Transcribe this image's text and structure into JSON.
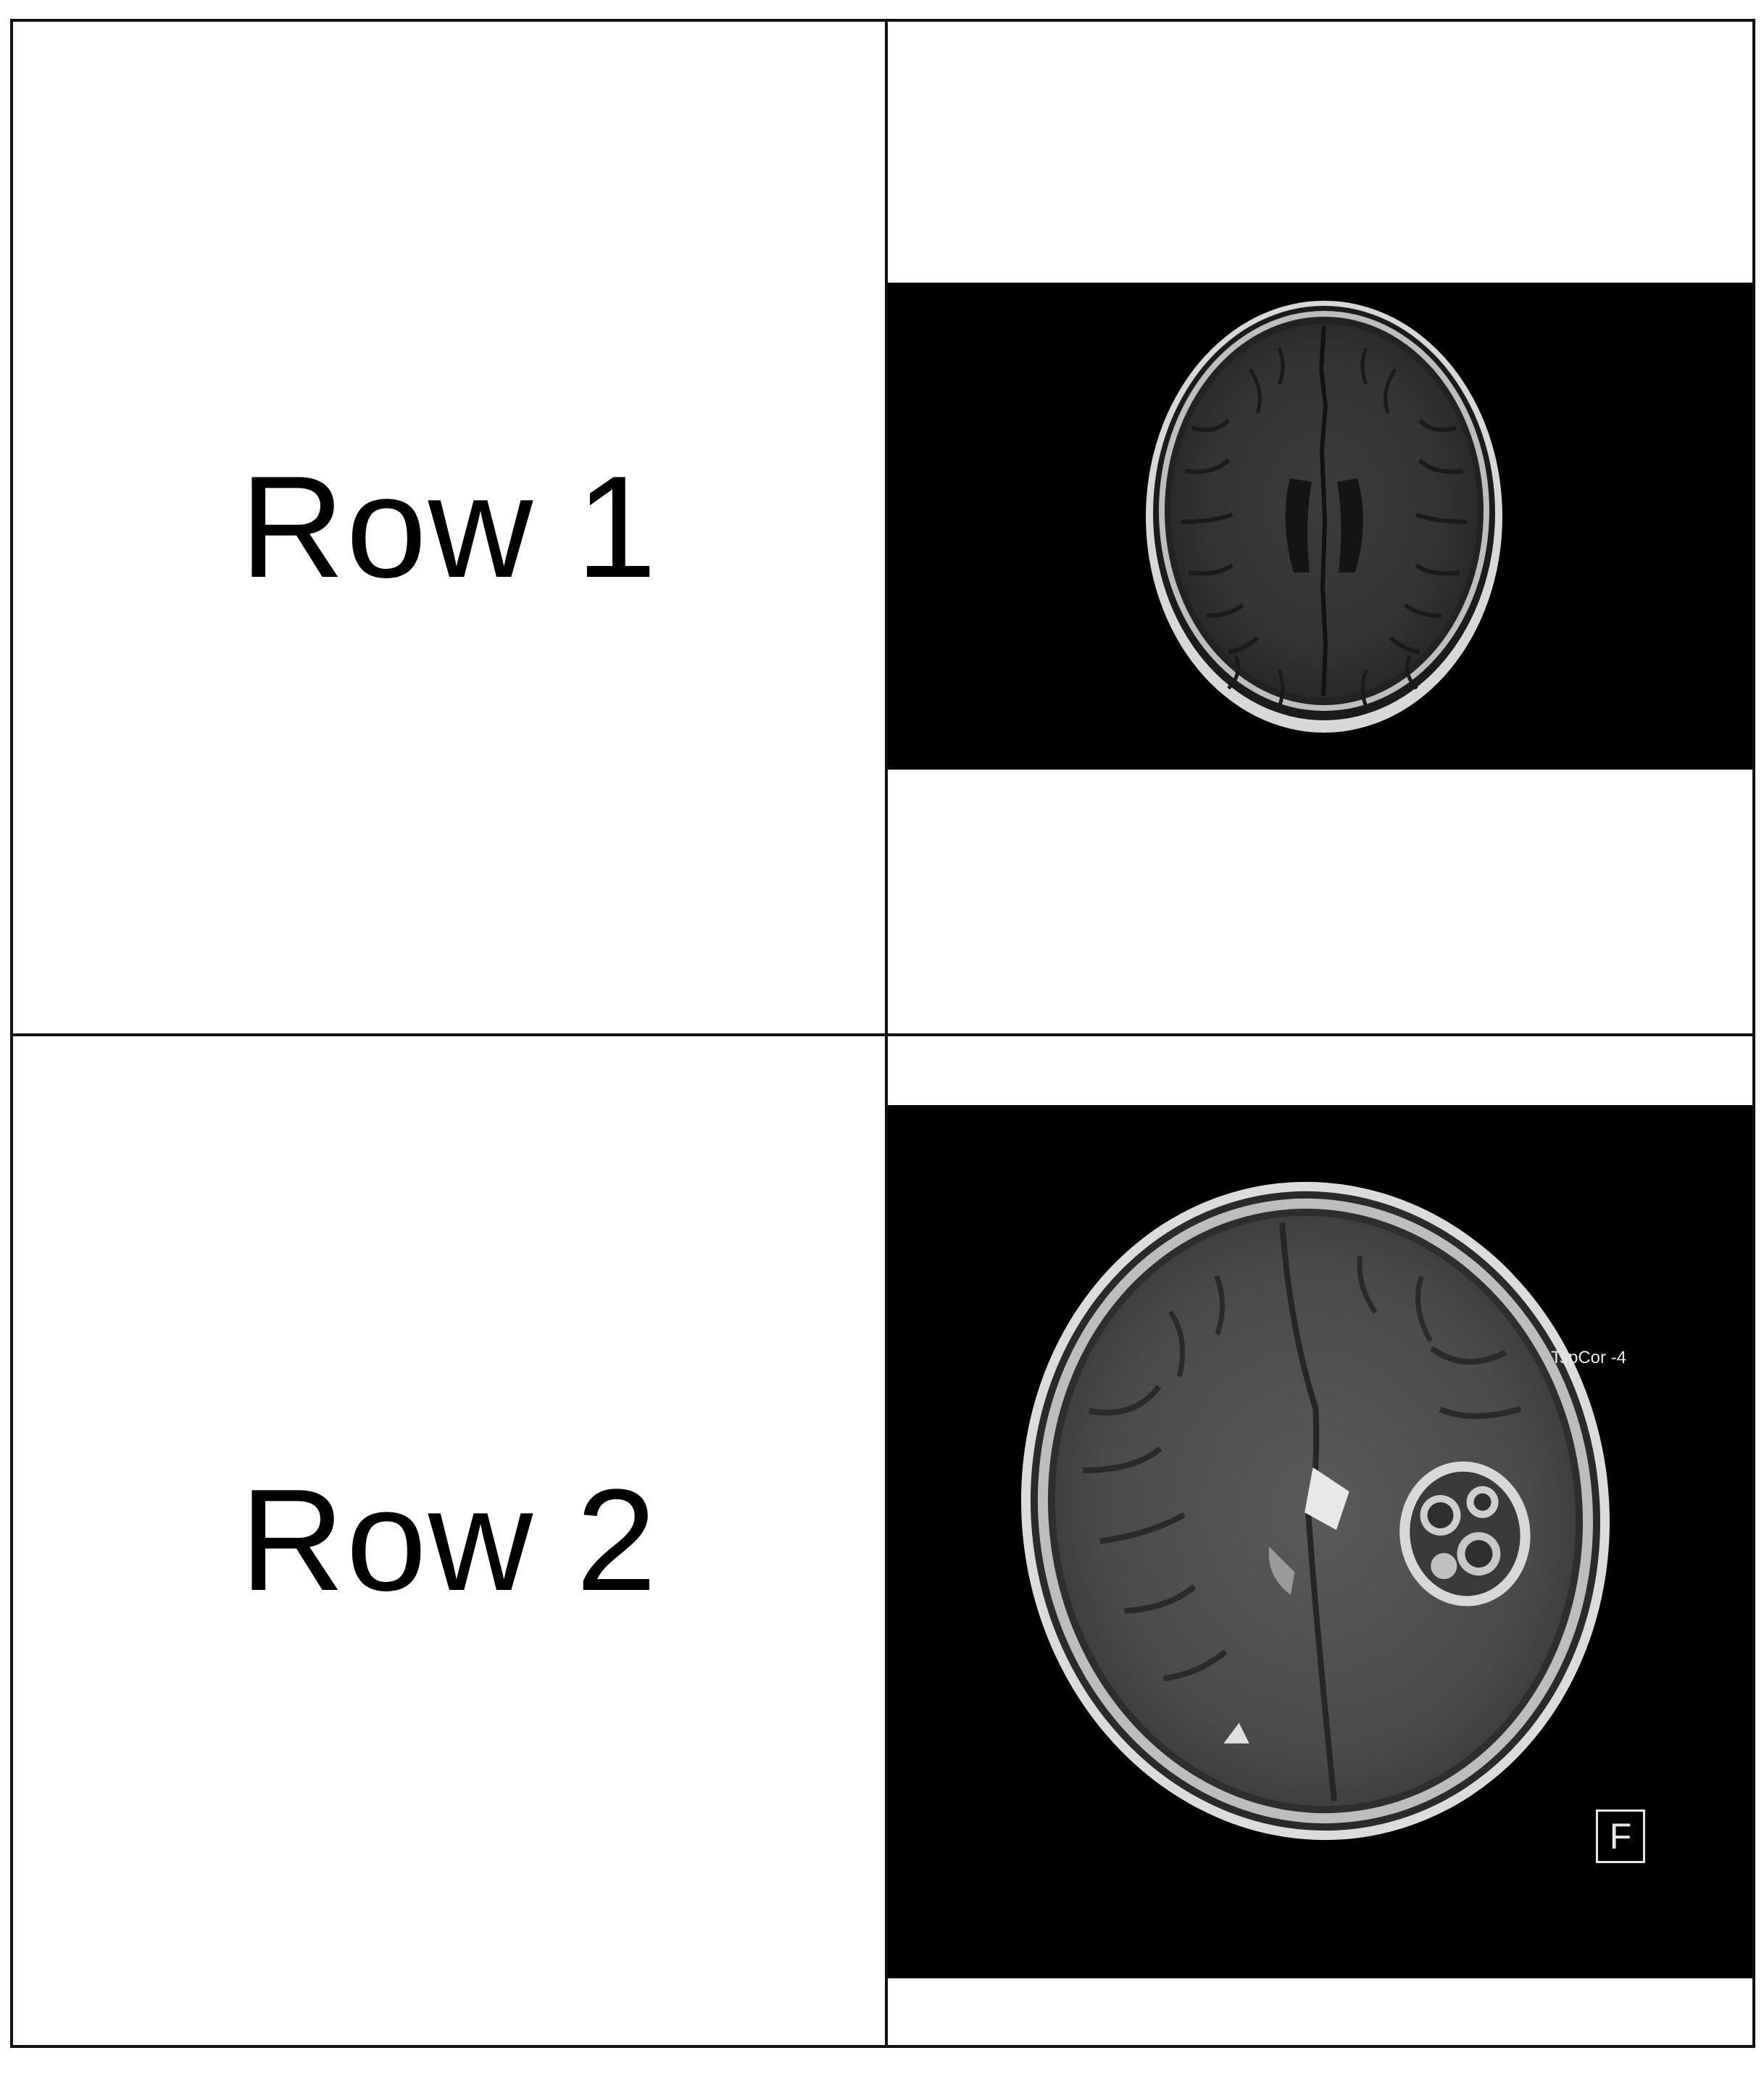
{
  "rows": [
    {
      "label": "Row 1"
    },
    {
      "label": "Row 2"
    }
  ],
  "scan2_overlay_text": "TspCor -4",
  "scan2_orientation_marker": "F"
}
